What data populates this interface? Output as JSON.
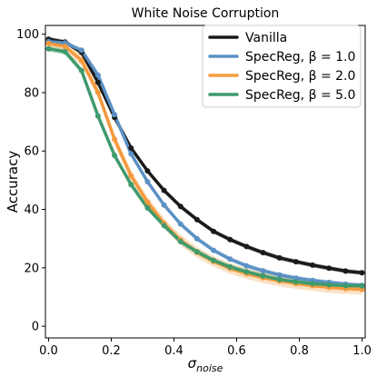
{
  "chart_data": {
    "type": "line",
    "title": "White Noise Corruption",
    "xlabel": "σ",
    "xlabel_sub": "noise",
    "ylabel": "Accuracy",
    "xlim": [
      -0.01,
      1.01
    ],
    "ylim": [
      -4,
      103
    ],
    "grid": false,
    "legend_position": "top-right",
    "xticks": [
      0.0,
      0.2,
      0.4,
      0.6,
      0.8,
      1.0
    ],
    "xtick_labels": [
      "0.0",
      "0.2",
      "0.4",
      "0.6",
      "0.8",
      "1.0"
    ],
    "yticks": [
      0,
      20,
      40,
      60,
      80,
      100
    ],
    "ytick_labels": [
      "0",
      "20",
      "40",
      "60",
      "80",
      "100"
    ],
    "x": [
      0.0,
      0.0526,
      0.1053,
      0.1579,
      0.2105,
      0.2632,
      0.3158,
      0.3684,
      0.4211,
      0.4737,
      0.5263,
      0.5789,
      0.6316,
      0.6842,
      0.7368,
      0.7895,
      0.8421,
      0.8947,
      0.9474,
      1.0
    ],
    "series": [
      {
        "name": "Vanilla",
        "color": "#1a1a1a",
        "band": 0.8,
        "values": [
          98.3,
          97.3,
          93.8,
          83.5,
          71.5,
          61.0,
          53.2,
          46.5,
          41.0,
          36.5,
          32.5,
          29.7,
          27.3,
          25.2,
          23.4,
          22.1,
          20.9,
          19.9,
          18.9,
          18.3
        ]
      },
      {
        "name": "SpecReg, β = 1.0",
        "color": "#5b91c4",
        "band": 0.8,
        "values": [
          97.5,
          97.0,
          94.5,
          86.0,
          72.5,
          59.0,
          49.5,
          41.5,
          35.0,
          30.0,
          26.0,
          23.0,
          20.7,
          19.0,
          17.6,
          16.5,
          15.7,
          15.0,
          14.4,
          14.0
        ]
      },
      {
        "name": "SpecReg, β = 2.0",
        "color": "#f49a3d",
        "band": 1.8,
        "values": [
          96.8,
          95.8,
          91.0,
          80.0,
          64.0,
          51.5,
          42.5,
          35.2,
          29.5,
          25.3,
          22.2,
          19.8,
          18.0,
          16.6,
          15.5,
          14.6,
          13.9,
          13.3,
          12.9,
          12.6
        ]
      },
      {
        "name": "SpecReg, β = 5.0",
        "color": "#3f9a6c",
        "band": 1.0,
        "values": [
          95.0,
          94.0,
          87.5,
          72.0,
          58.5,
          48.5,
          40.5,
          34.5,
          29.0,
          25.5,
          22.5,
          20.3,
          18.6,
          17.2,
          16.0,
          15.2,
          14.6,
          14.2,
          13.9,
          13.8
        ]
      }
    ]
  }
}
